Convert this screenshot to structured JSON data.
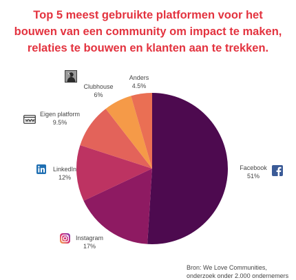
{
  "title": {
    "line1": "Top 5 meest gebruikte platformen voor het",
    "line2": "bouwen van een community om impact te maken,",
    "line3": "relaties te bouwen en klanten aan te trekken."
  },
  "chart_data": {
    "type": "pie",
    "title": "Top 5 meest gebruikte platformen voor het bouwen van een community om impact te maken, relaties te bouwen en klanten aan te trekken.",
    "slices": [
      {
        "label": "Facebook",
        "value": 51,
        "display": "51%",
        "color": "#4d0a4f"
      },
      {
        "label": "Instagram",
        "value": 17,
        "display": "17%",
        "color": "#8e1a62"
      },
      {
        "label": "LinkedIn",
        "value": 12,
        "display": "12%",
        "color": "#bd3362"
      },
      {
        "label": "Eigen platform",
        "value": 9.5,
        "display": "9.5%",
        "color": "#e3635a"
      },
      {
        "label": "Clubhouse",
        "value": 6,
        "display": "6%",
        "color": "#f59a48"
      },
      {
        "label": "Anders",
        "value": 4.5,
        "display": "4.5%",
        "color": "#ea6f54"
      }
    ],
    "legend": "none"
  },
  "icons": {
    "facebook": "facebook-icon",
    "instagram": "instagram-icon",
    "linkedin": "linkedin-icon",
    "eigen_platform": "www-browser-icon",
    "clubhouse": "clubhouse-icon"
  },
  "source": {
    "line1": "Bron: We Love Communities,",
    "line2": "onderzoek onder 2.000 ondernemers"
  }
}
